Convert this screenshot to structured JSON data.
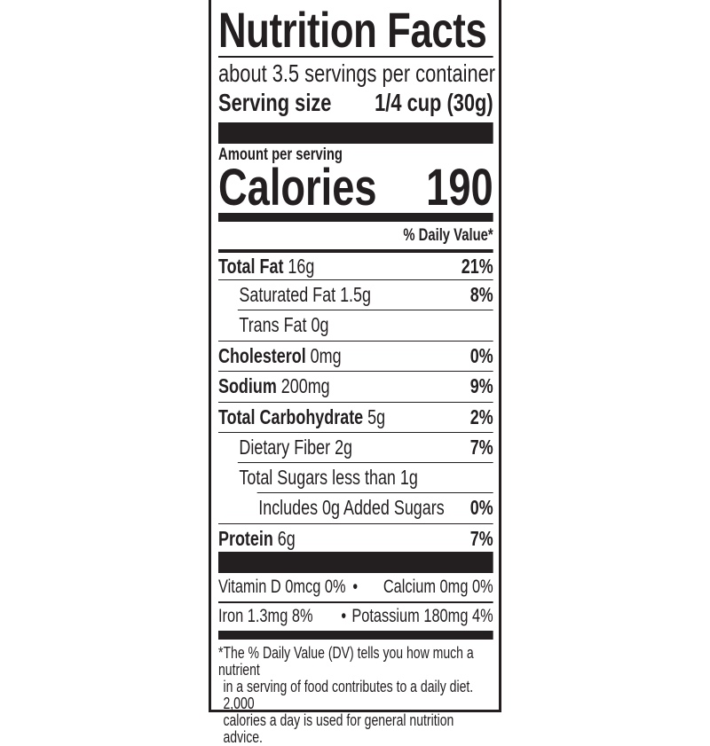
{
  "title": "Nutrition Facts",
  "servings_per_container": "about 3.5 servings per container",
  "serving_size": {
    "label": "Serving size",
    "value": "1/4 cup (30g)"
  },
  "amount_per_serving": "Amount per serving",
  "calories": {
    "label": "Calories",
    "value": "190"
  },
  "daily_value_header": "% Daily Value*",
  "nutrients": [
    {
      "name": "Total Fat",
      "amount": "16g",
      "dv": "21%"
    },
    {
      "name": "Saturated Fat 1.5g",
      "amount": "",
      "dv": "8%"
    },
    {
      "name": "Trans Fat 0g",
      "amount": "",
      "dv": ""
    },
    {
      "name": "Cholesterol",
      "amount": "0mg",
      "dv": "0%"
    },
    {
      "name": "Sodium",
      "amount": "200mg",
      "dv": "9%"
    },
    {
      "name": "Total Carbohydrate",
      "amount": "5g",
      "dv": "2%"
    },
    {
      "name": "Dietary Fiber 2g",
      "amount": "",
      "dv": "7%"
    },
    {
      "name": "Total Sugars less than 1g",
      "amount": "",
      "dv": ""
    },
    {
      "name": "Includes 0g Added Sugars",
      "amount": "",
      "dv": "0%"
    },
    {
      "name": "Protein",
      "amount": "6g",
      "dv": "7%"
    }
  ],
  "vitamins": [
    {
      "left": "Vitamin D 0mcg 0%",
      "bullet": "•",
      "right": "Calcium 0mg 0%"
    },
    {
      "left": "Iron 1.3mg 8%",
      "bullet": "•",
      "right": "Potassium 180mg 4%"
    }
  ],
  "footnote": [
    "*The % Daily Value (DV) tells you how much a nutrient",
    "in a serving of food contributes to a daily diet. 2,000",
    "calories a day is used for general nutrition advice."
  ]
}
